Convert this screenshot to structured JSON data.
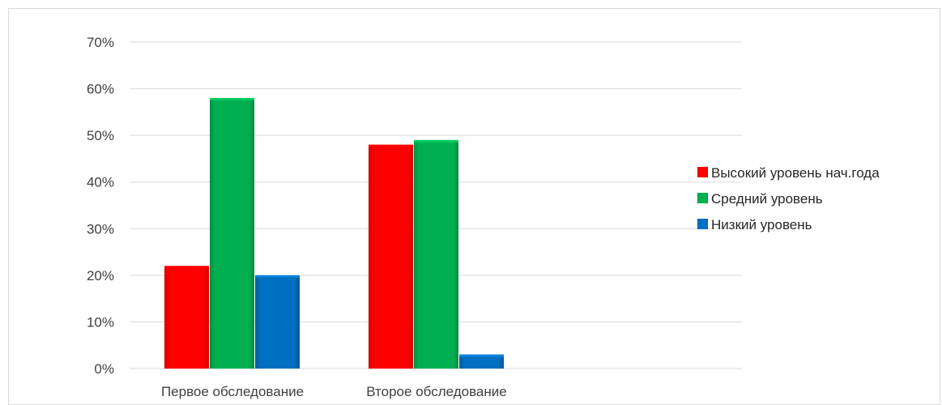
{
  "chart_data": {
    "type": "bar",
    "categories": [
      "Первое обследование",
      "Второе обследование"
    ],
    "series": [
      {
        "name": "Высокий уровень нач.года",
        "values": [
          22,
          48
        ],
        "color": "#ff0000"
      },
      {
        "name": "Средний уровень",
        "values": [
          58,
          49
        ],
        "color": "#00b050"
      },
      {
        "name": "Низкий уровень",
        "values": [
          20,
          3
        ],
        "color": "#0070c0"
      }
    ],
    "y_ticks": [
      "0%",
      "10%",
      "20%",
      "30%",
      "40%",
      "50%",
      "60%",
      "70%"
    ],
    "ylim": [
      0,
      70
    ],
    "y_unit": "%",
    "grid": true,
    "legend_position": "right"
  }
}
